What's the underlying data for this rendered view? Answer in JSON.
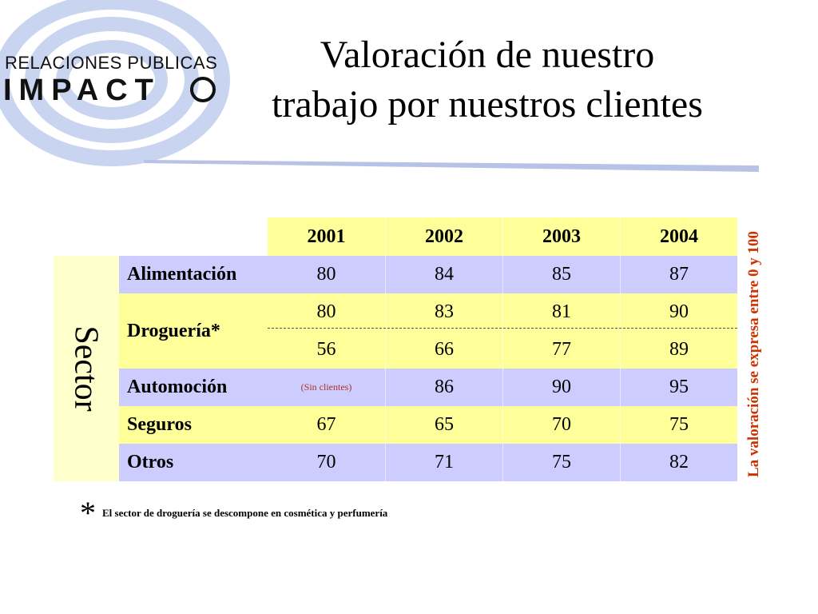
{
  "logo": {
    "line1": "RELACIONES  PUBLICAS",
    "line2": "IMPACT",
    "ring_color": "#c9d4f0"
  },
  "title": {
    "line1": "Valoración de nuestro",
    "line2": "trabajo por nuestros clientes"
  },
  "table": {
    "vertical_label": "Sector",
    "years": [
      "2001",
      "2002",
      "2003",
      "2004"
    ],
    "rows": [
      {
        "sector": "Alimentación",
        "values": [
          "80",
          "84",
          "85",
          "87"
        ]
      },
      {
        "sector": "Droguería*",
        "values_top": [
          "80",
          "83",
          "81",
          "90"
        ],
        "values_bottom": [
          "56",
          "66",
          "77",
          "89"
        ]
      },
      {
        "sector": "Automoción",
        "values": [
          "(Sin clientes)",
          "86",
          "90",
          "95"
        ]
      },
      {
        "sector": "Seguros",
        "values": [
          "67",
          "65",
          "70",
          "75"
        ]
      },
      {
        "sector": "Otros",
        "values": [
          "70",
          "71",
          "75",
          "82"
        ]
      }
    ]
  },
  "side_note": "La valoración se expresa entre 0 y 100",
  "footnote": {
    "star": "*",
    "text": "El sector de droguería se descompone en cosmética y perfumería"
  },
  "colors": {
    "yellow": "#ffff99",
    "lavender": "#ccccff",
    "band": "#ffffcc",
    "note_red": "#cc3300"
  }
}
